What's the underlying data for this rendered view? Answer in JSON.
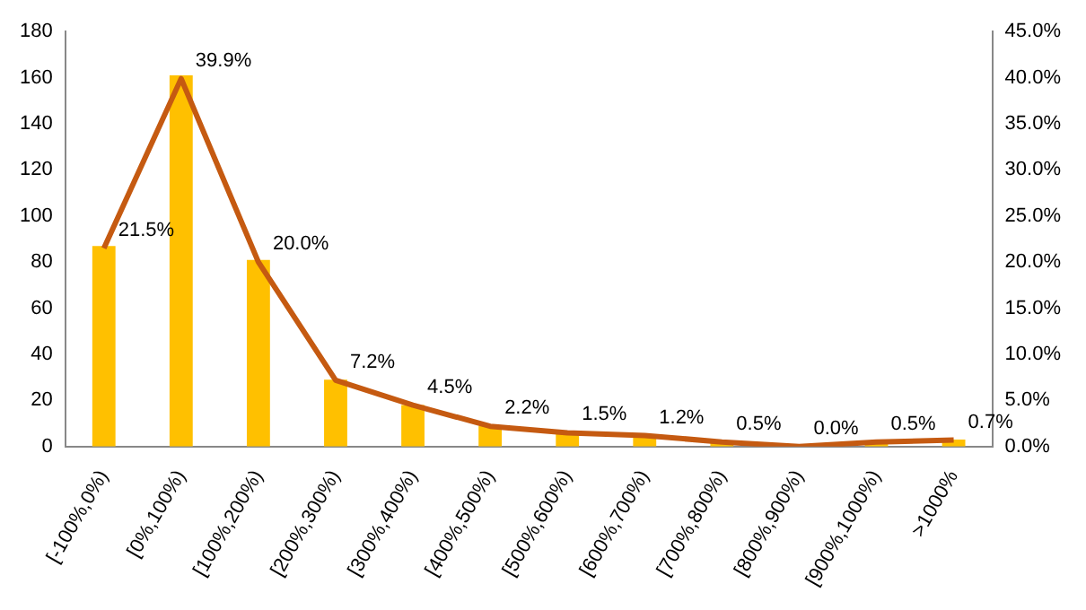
{
  "chart_data": {
    "type": "bar",
    "categories": [
      "[-100%,0%)",
      "[0%,100%)",
      "[100%,200%)",
      "[200%,300%)",
      "[300%,400%)",
      "[400%,500%)",
      "[500%,600%)",
      "[600%,700%)",
      "[700%,800%)",
      "[800%,900%)",
      "[900%,1000%)",
      ">1000%"
    ],
    "series": [
      {
        "color": "#ffc000",
        "values": [
          87,
          161,
          81,
          29,
          18,
          9,
          6,
          5,
          2,
          0,
          2,
          3
        ]
      },
      {
        "type": "line",
        "axis": "y2",
        "color": "#c55a11",
        "values": [
          21.5,
          39.9,
          20.0,
          7.2,
          4.5,
          2.2,
          1.5,
          1.2,
          0.5,
          0.0,
          0.5,
          0.7
        ],
        "value_labels": [
          "21.5%",
          "39.9%",
          "20.0%",
          "7.2%",
          "4.5%",
          "2.2%",
          "1.5%",
          "1.2%",
          "0.5%",
          "0.0%",
          "0.5%",
          "0.7%"
        ]
      }
    ],
    "ylim": [
      0,
      180
    ],
    "yticks": [
      0,
      20,
      40,
      60,
      80,
      100,
      120,
      140,
      160,
      180
    ],
    "y2lim": [
      0,
      45
    ],
    "y2ticks": [
      {
        "value": 0,
        "label": "0.0%"
      },
      {
        "value": 5,
        "label": "5.0%"
      },
      {
        "value": 10,
        "label": "10.0%"
      },
      {
        "value": 15,
        "label": "15.0%"
      },
      {
        "value": 20,
        "label": "20.0%"
      },
      {
        "value": 25,
        "label": "25.0%"
      },
      {
        "value": 30,
        "label": "30.0%"
      },
      {
        "value": 35,
        "label": "35.0%"
      },
      {
        "value": 40,
        "label": "40.0%"
      },
      {
        "value": 45,
        "label": "45.0%"
      }
    ],
    "grid": false,
    "legend": false,
    "marker": "none"
  }
}
